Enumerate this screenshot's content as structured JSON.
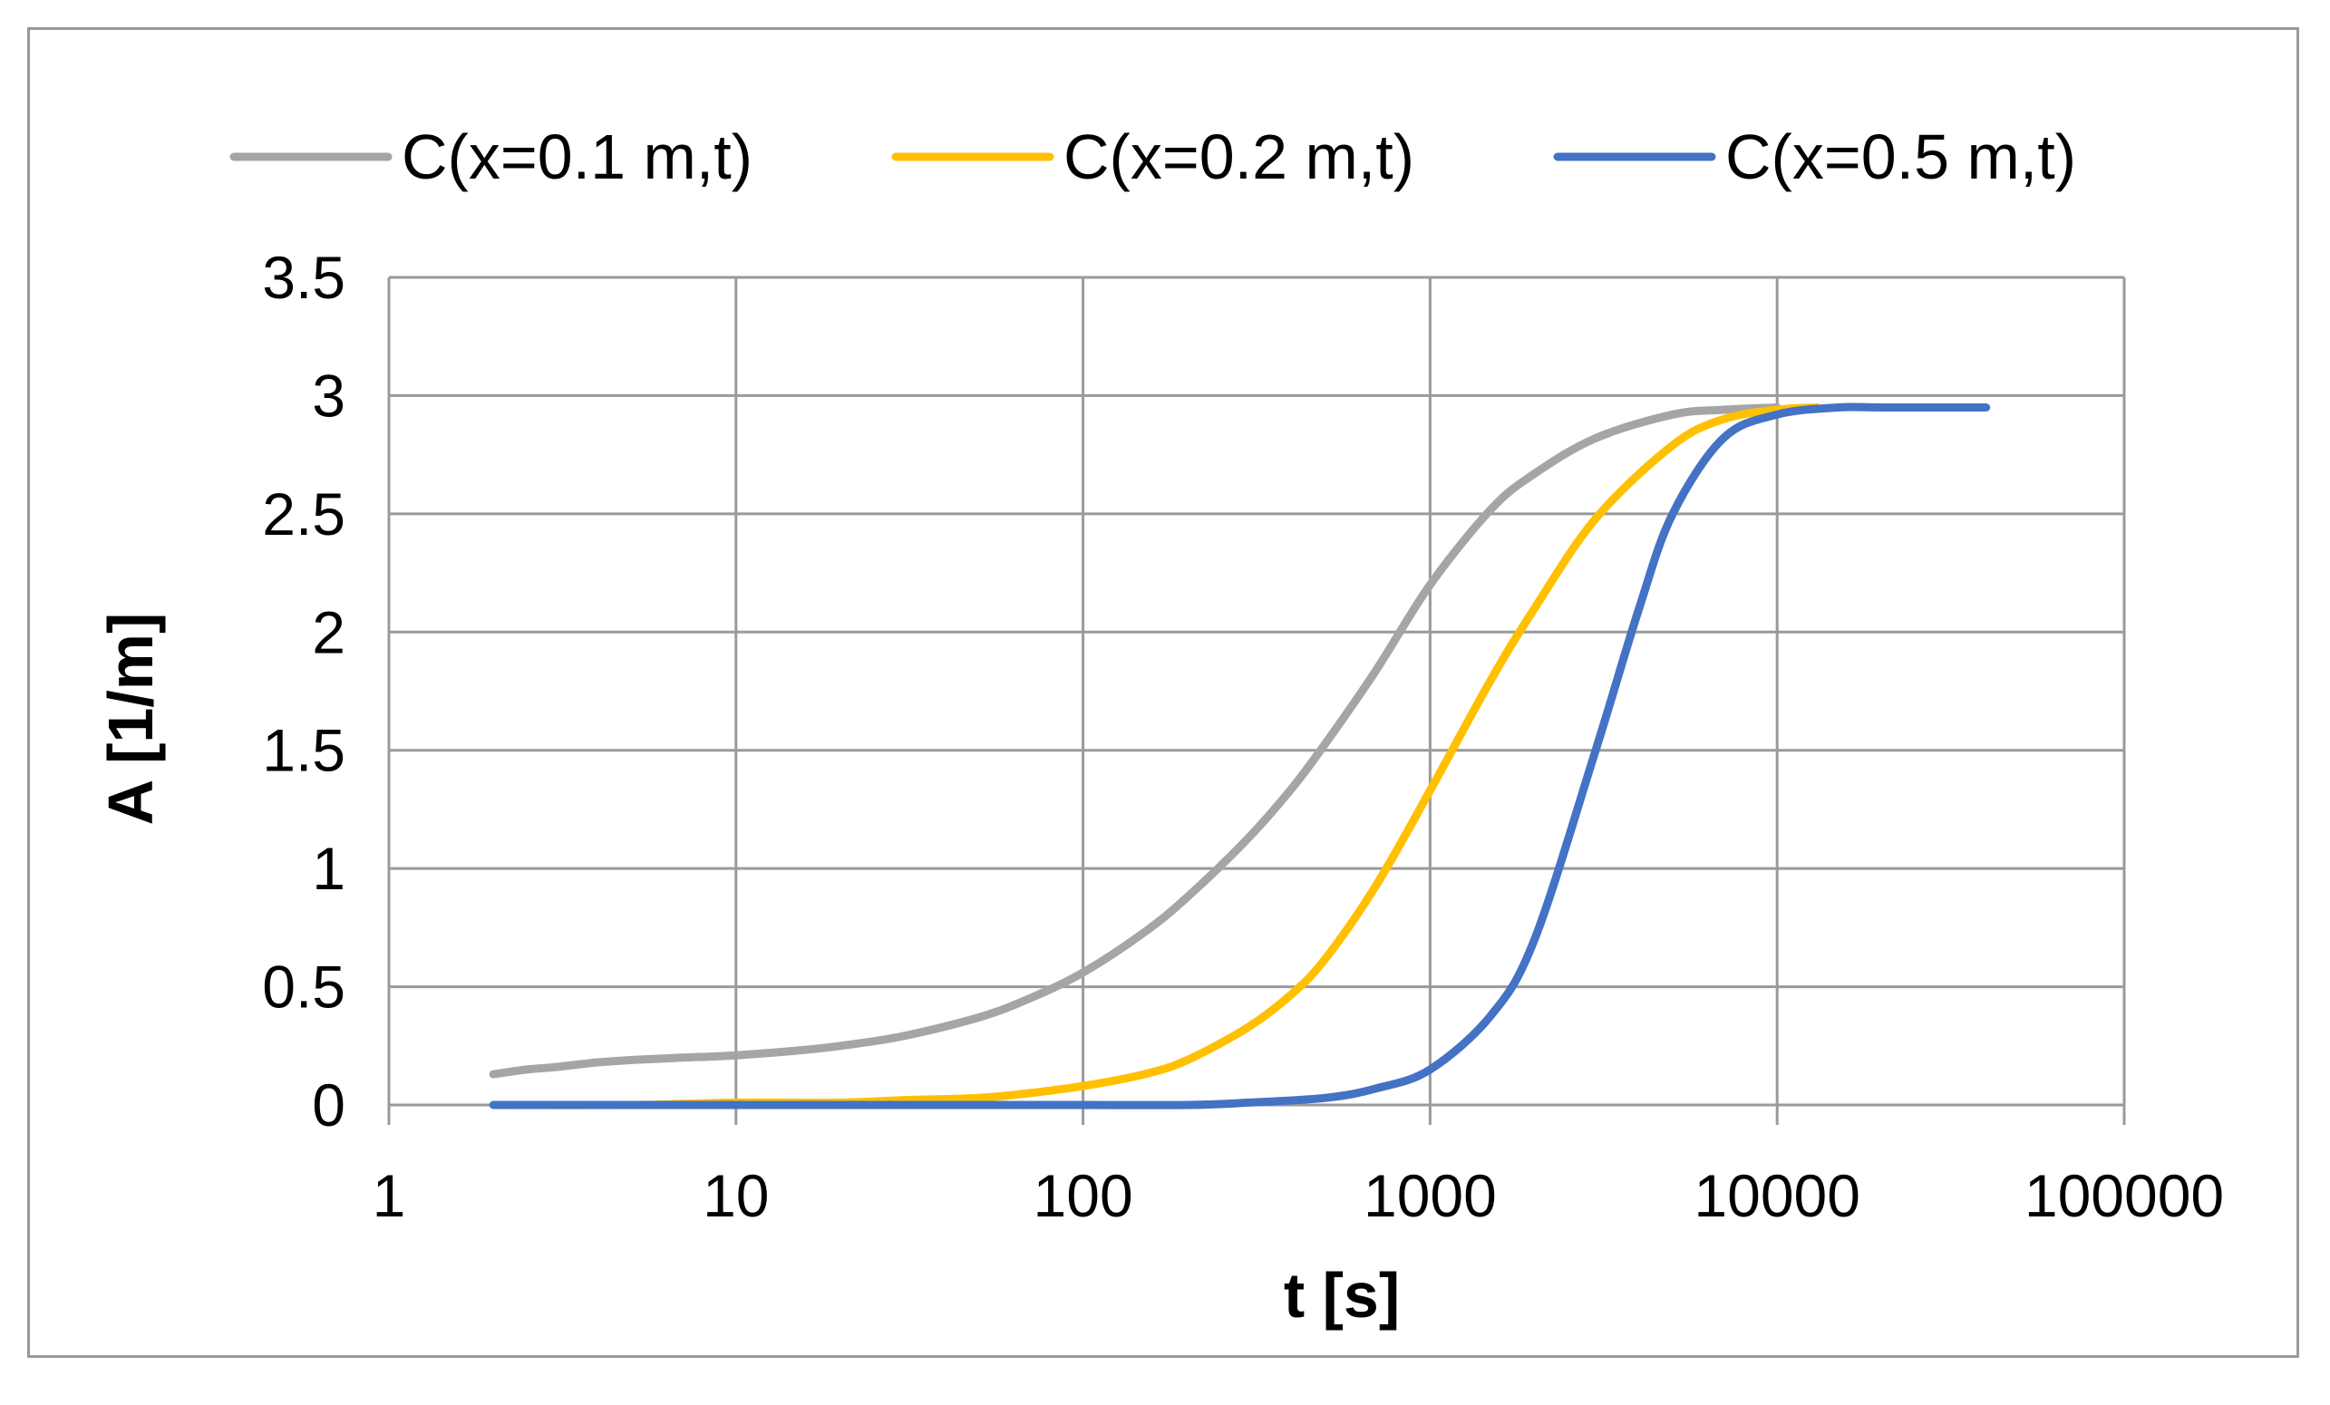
{
  "chart_data": {
    "type": "line",
    "title": "",
    "xlabel": "t [s]",
    "ylabel": "A [1/m]",
    "xscale": "log",
    "xlim": [
      1,
      100000
    ],
    "ylim": [
      0,
      3.5
    ],
    "x_ticks": [
      1,
      10,
      100,
      1000,
      10000,
      100000
    ],
    "x_tick_labels": [
      "1",
      "10",
      "100",
      "1000",
      "10000",
      "100000"
    ],
    "y_ticks": [
      0,
      0.5,
      1,
      1.5,
      2,
      2.5,
      3,
      3.5
    ],
    "y_tick_labels": [
      "0",
      "0.5",
      "1",
      "1.5",
      "2",
      "2.5",
      "3",
      "3.5"
    ],
    "grid": true,
    "legend_position": "top",
    "series": [
      {
        "name": "C(x=0.1 m,t)",
        "color": "#a5a5a5",
        "x": [
          2,
          2.5,
          3,
          4,
          5,
          7,
          10,
          15,
          20,
          30,
          50,
          70,
          100,
          150,
          200,
          300,
          400,
          500,
          700,
          1000,
          1500,
          2000,
          3000,
          5000,
          7000,
          10000
        ],
        "y": [
          0.13,
          0.15,
          0.16,
          0.18,
          0.19,
          0.2,
          0.21,
          0.23,
          0.25,
          0.29,
          0.37,
          0.45,
          0.56,
          0.73,
          0.88,
          1.13,
          1.34,
          1.53,
          1.84,
          2.2,
          2.52,
          2.67,
          2.82,
          2.92,
          2.94,
          2.95
        ]
      },
      {
        "name": "C(x=0.2 m,t)",
        "color": "#ffc000",
        "x": [
          2,
          5,
          10,
          20,
          30,
          50,
          70,
          100,
          150,
          200,
          300,
          400,
          500,
          700,
          1000,
          1500,
          2000,
          3000,
          5000,
          7000,
          10000,
          13000
        ],
        "y": [
          0.0,
          0.0,
          0.01,
          0.01,
          0.02,
          0.03,
          0.05,
          0.08,
          0.13,
          0.19,
          0.33,
          0.47,
          0.62,
          0.93,
          1.33,
          1.8,
          2.1,
          2.48,
          2.79,
          2.9,
          2.94,
          2.95
        ]
      },
      {
        "name": "C(x=0.5 m,t)",
        "color": "#4472c4",
        "x": [
          2,
          10,
          50,
          100,
          200,
          300,
          500,
          700,
          1000,
          1500,
          2000,
          3000,
          4000,
          5000,
          7000,
          10000,
          15000,
          20000,
          40000
        ],
        "y": [
          0.0,
          0.0,
          0.0,
          0.0,
          0.0,
          0.01,
          0.03,
          0.07,
          0.15,
          0.38,
          0.7,
          1.5,
          2.1,
          2.5,
          2.82,
          2.92,
          2.95,
          2.95,
          2.95
        ]
      }
    ]
  }
}
